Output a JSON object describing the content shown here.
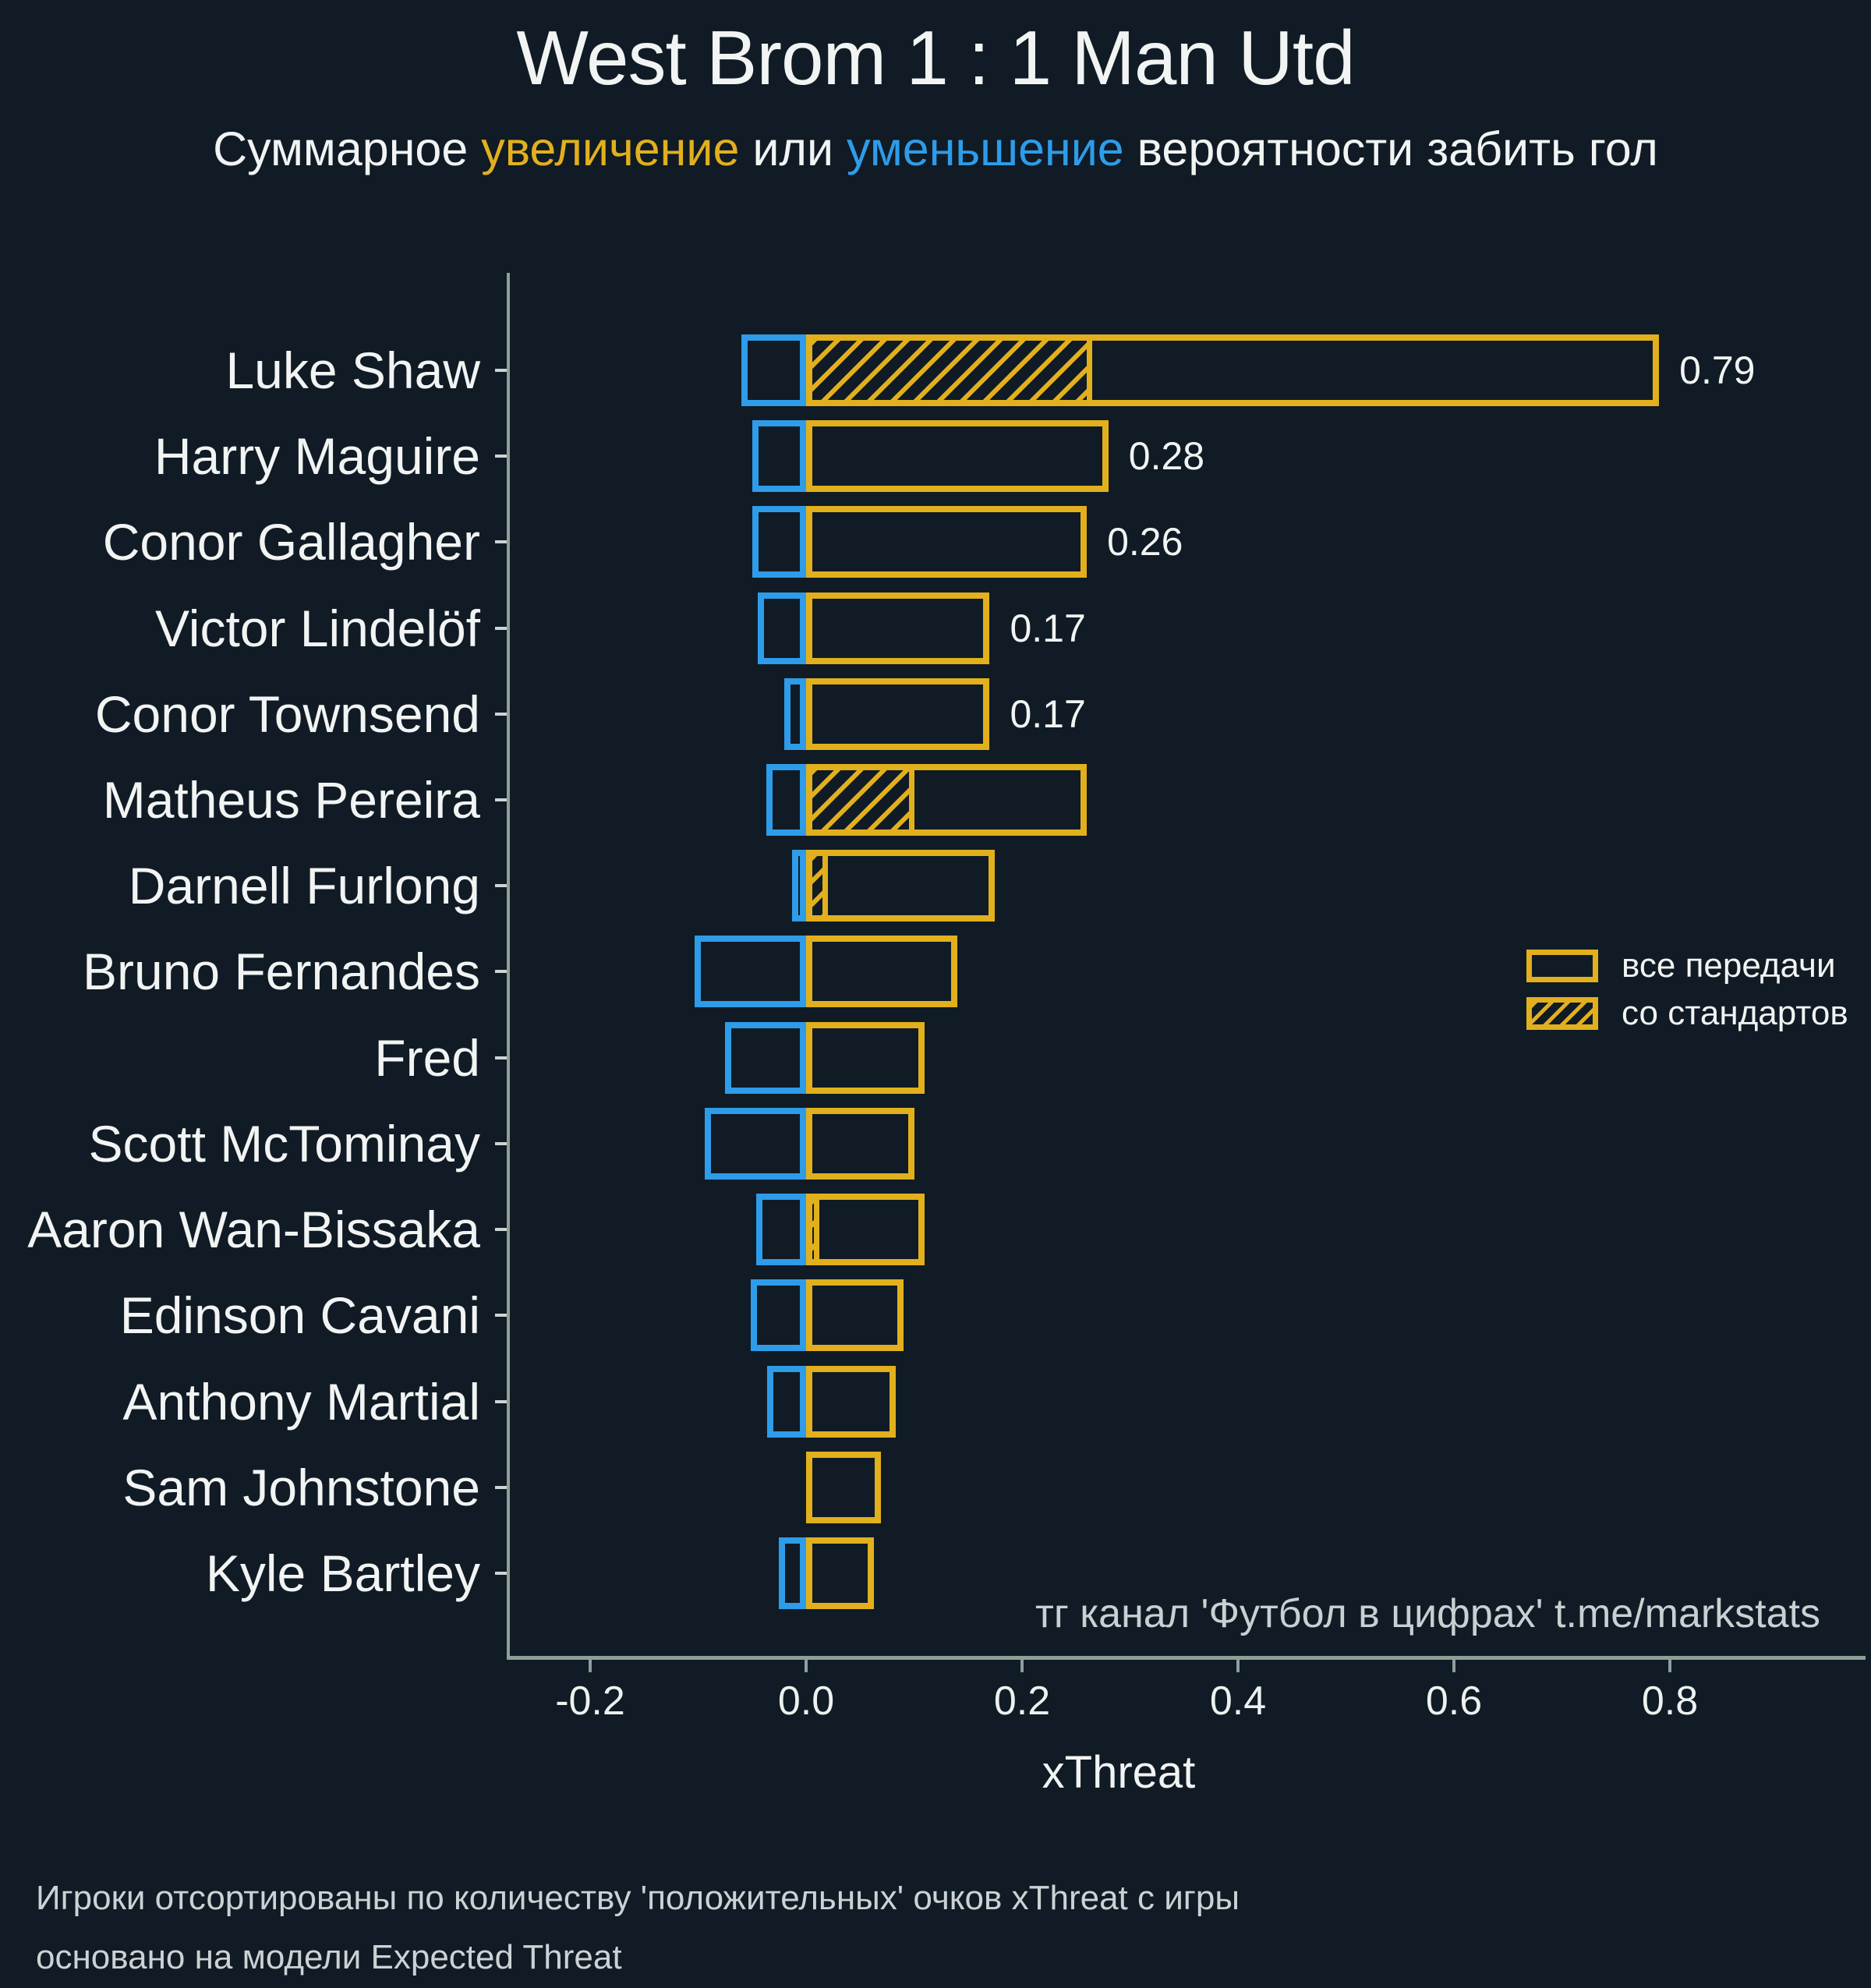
{
  "title": "West Brom 1 : 1 Man Utd",
  "subtitle": {
    "parts": [
      {
        "text": "Суммарное ",
        "color": "white"
      },
      {
        "text": "увеличение",
        "color": "yellow"
      },
      {
        "text": " или ",
        "color": "white"
      },
      {
        "text": "уменьшение",
        "color": "blue"
      },
      {
        "text": " вероятности забить гол",
        "color": "white"
      }
    ]
  },
  "chart_data": {
    "type": "bar",
    "orientation": "horizontal",
    "title": "West Brom 1 : 1 Man Utd",
    "xlabel": "xThreat",
    "x_ticks": [
      -0.2,
      0.0,
      0.2,
      0.4,
      0.6,
      0.8
    ],
    "xlim": [
      -0.277,
      0.98
    ],
    "grid": false,
    "legend_position": "center-right",
    "legend": [
      {
        "label": "все передачи",
        "style": "outline"
      },
      {
        "label": "со стандартов",
        "style": "hatch"
      }
    ],
    "players": [
      {
        "name": "Luke Shaw",
        "positive": 0.79,
        "negative": -0.06,
        "set_pieces": 0.265,
        "label": "0.79"
      },
      {
        "name": "Harry Maguire",
        "positive": 0.28,
        "negative": -0.05,
        "set_pieces": 0,
        "label": "0.28"
      },
      {
        "name": "Conor Gallagher",
        "positive": 0.26,
        "negative": -0.05,
        "set_pieces": 0,
        "label": "0.26"
      },
      {
        "name": "Victor Lindelöf",
        "positive": 0.17,
        "negative": -0.045,
        "set_pieces": 0,
        "label": "0.17"
      },
      {
        "name": "Conor Townsend",
        "positive": 0.17,
        "negative": -0.02,
        "set_pieces": 0.005,
        "label": "0.17"
      },
      {
        "name": "Matheus Pereira",
        "positive": 0.26,
        "negative": -0.037,
        "set_pieces": 0.1,
        "label": null
      },
      {
        "name": "Darnell Furlong",
        "positive": 0.175,
        "negative": -0.013,
        "set_pieces": 0.02,
        "label": null
      },
      {
        "name": "Bruno Fernandes",
        "positive": 0.14,
        "negative": -0.103,
        "set_pieces": 0,
        "label": null
      },
      {
        "name": "Fred",
        "positive": 0.11,
        "negative": -0.075,
        "set_pieces": 0,
        "label": null
      },
      {
        "name": "Scott McTominay",
        "positive": 0.1,
        "negative": -0.094,
        "set_pieces": 0,
        "label": null
      },
      {
        "name": "Aaron Wan-Bissaka",
        "positive": 0.11,
        "negative": -0.046,
        "set_pieces": 0.012,
        "label": null
      },
      {
        "name": "Edinson Cavani",
        "positive": 0.09,
        "negative": -0.051,
        "set_pieces": 0,
        "label": null
      },
      {
        "name": "Anthony Martial",
        "positive": 0.083,
        "negative": -0.036,
        "set_pieces": 0,
        "label": null
      },
      {
        "name": "Sam Johnstone",
        "positive": 0.069,
        "negative": 0,
        "set_pieces": 0,
        "label": null
      },
      {
        "name": "Kyle Bartley",
        "positive": 0.063,
        "negative": -0.025,
        "set_pieces": 0,
        "label": null
      }
    ]
  },
  "watermark": "тг канал 'Футбол в цифрах'  t.me/markstats",
  "footer": [
    "Игроки отсортированы по количеству 'положительных' очков xThreat с игры",
    "основано на модели Expected Threat"
  ],
  "colors": {
    "background": "#101b25",
    "increase": "#e2b01d",
    "decrease": "#2e9ce9",
    "text": "#f2f4f3",
    "axis": "#8e9f99",
    "muted_text": "#ccd2d4"
  }
}
